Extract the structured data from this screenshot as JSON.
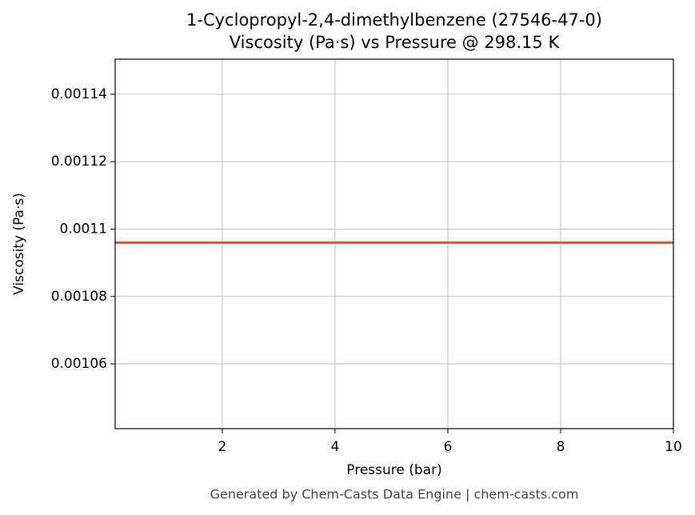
{
  "chart_data": {
    "type": "line",
    "title": "1-Cyclopropyl-2,4-dimethylbenzene (27546-47-0)",
    "subtitle": "Viscosity (Pa·s) vs Pressure @ 298.15 K",
    "x_label": "Pressure (bar)",
    "y_label": "Viscosity (Pa·s)",
    "x": [
      0.1,
      10
    ],
    "series": [
      {
        "name": "Viscosity",
        "color": "#cc5a2a",
        "values": [
          0.001096,
          0.001096
        ]
      }
    ],
    "xlim": [
      0.1,
      10
    ],
    "ylim": [
      0.0010408,
      0.0011504
    ],
    "xticks": [
      2,
      4,
      6,
      8,
      10
    ],
    "yticks": [
      0.00106,
      0.00108,
      0.0011,
      0.00112,
      0.00114
    ],
    "grid": true,
    "footer": "Generated by Chem-Casts Data Engine | chem-casts.com"
  }
}
